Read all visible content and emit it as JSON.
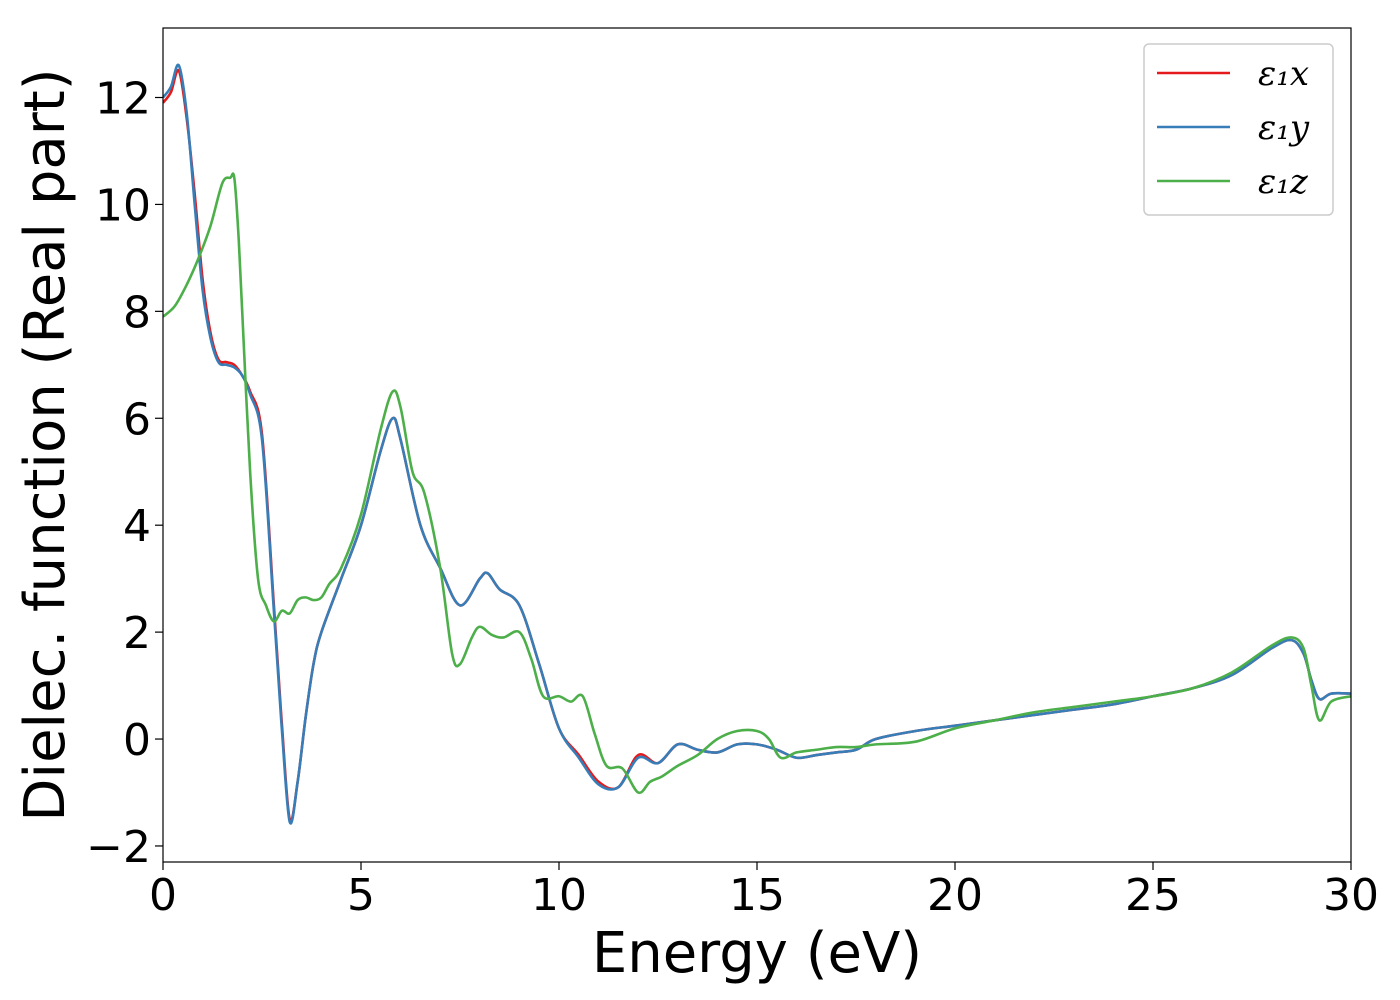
{
  "chart_data": {
    "type": "line",
    "xlabel": "Energy (eV)",
    "ylabel": "Dielec. function (Real part)",
    "xlim": [
      0,
      30
    ],
    "ylim": [
      -2.3,
      13.3
    ],
    "xticks": [
      0,
      5,
      10,
      15,
      20,
      25,
      30
    ],
    "yticks": [
      -2,
      0,
      2,
      4,
      6,
      8,
      10,
      12
    ],
    "xtick_labels": [
      "0",
      "5",
      "10",
      "15",
      "20",
      "25",
      "30"
    ],
    "ytick_labels": [
      "−2",
      "0",
      "2",
      "4",
      "6",
      "8",
      "10",
      "12"
    ],
    "grid": false,
    "legend_position": "top-right",
    "series": [
      {
        "name": "ε₁x",
        "color": "#e41a1c",
        "x": [
          0,
          0.2,
          0.4,
          0.6,
          0.8,
          1.0,
          1.2,
          1.4,
          1.6,
          1.8,
          2.0,
          2.2,
          2.5,
          2.8,
          3.0,
          3.2,
          3.4,
          3.6,
          3.8,
          4.0,
          4.5,
          5.0,
          5.5,
          5.8,
          6.0,
          6.5,
          7.0,
          7.5,
          8.0,
          8.2,
          8.5,
          9.0,
          9.5,
          10.0,
          10.5,
          11.0,
          11.5,
          12.0,
          12.5,
          13.0,
          13.5,
          14.0,
          14.5,
          15.0,
          15.5,
          16.0,
          16.5,
          17.0,
          17.5,
          18.0,
          19.0,
          20.0,
          21.0,
          22.0,
          23.0,
          24.0,
          25.0,
          26.0,
          27.0,
          28.0,
          28.5,
          28.8,
          29.0,
          29.2,
          29.5,
          30.0
        ],
        "values": [
          11.9,
          12.1,
          12.5,
          11.6,
          10.2,
          8.6,
          7.6,
          7.1,
          7.05,
          7.0,
          6.8,
          6.5,
          5.7,
          2.5,
          0.3,
          -1.5,
          -0.8,
          0.4,
          1.4,
          2.0,
          3.0,
          4.0,
          5.4,
          6.0,
          5.6,
          4.0,
          3.2,
          2.5,
          3.0,
          3.1,
          2.8,
          2.5,
          1.4,
          0.2,
          -0.3,
          -0.8,
          -0.9,
          -0.3,
          -0.45,
          -0.1,
          -0.2,
          -0.25,
          -0.1,
          -0.1,
          -0.2,
          -0.35,
          -0.3,
          -0.25,
          -0.2,
          0.0,
          0.15,
          0.25,
          0.35,
          0.45,
          0.55,
          0.65,
          0.8,
          0.95,
          1.2,
          1.7,
          1.85,
          1.6,
          1.1,
          0.75,
          0.85,
          0.85
        ]
      },
      {
        "name": "ε₁y",
        "color": "#377eb8",
        "x": [
          0,
          0.2,
          0.4,
          0.6,
          0.8,
          1.0,
          1.2,
          1.4,
          1.6,
          1.8,
          2.0,
          2.2,
          2.5,
          2.8,
          3.0,
          3.2,
          3.4,
          3.6,
          3.8,
          4.0,
          4.5,
          5.0,
          5.5,
          5.8,
          6.0,
          6.5,
          7.0,
          7.5,
          8.0,
          8.2,
          8.5,
          9.0,
          9.5,
          10.0,
          10.5,
          11.0,
          11.5,
          12.0,
          12.5,
          13.0,
          13.5,
          14.0,
          14.5,
          15.0,
          15.5,
          16.0,
          16.5,
          17.0,
          17.5,
          18.0,
          19.0,
          20.0,
          21.0,
          22.0,
          23.0,
          24.0,
          25.0,
          26.0,
          27.0,
          28.0,
          28.5,
          28.8,
          29.0,
          29.2,
          29.5,
          30.0
        ],
        "values": [
          12.0,
          12.2,
          12.6,
          11.7,
          10.0,
          8.4,
          7.5,
          7.05,
          7.0,
          6.95,
          6.8,
          6.45,
          5.6,
          2.4,
          0.2,
          -1.55,
          -0.8,
          0.4,
          1.4,
          2.0,
          3.0,
          4.0,
          5.4,
          6.0,
          5.6,
          4.0,
          3.2,
          2.5,
          3.0,
          3.1,
          2.8,
          2.5,
          1.4,
          0.2,
          -0.35,
          -0.85,
          -0.9,
          -0.35,
          -0.45,
          -0.1,
          -0.2,
          -0.25,
          -0.1,
          -0.1,
          -0.2,
          -0.35,
          -0.3,
          -0.25,
          -0.2,
          0.0,
          0.15,
          0.25,
          0.35,
          0.45,
          0.55,
          0.65,
          0.8,
          0.95,
          1.2,
          1.7,
          1.85,
          1.6,
          1.1,
          0.75,
          0.85,
          0.85
        ]
      },
      {
        "name": "ε₁z",
        "color": "#4daf4a",
        "x": [
          0,
          0.3,
          0.6,
          0.9,
          1.2,
          1.5,
          1.7,
          1.8,
          1.9,
          2.0,
          2.2,
          2.4,
          2.6,
          2.8,
          3.0,
          3.2,
          3.4,
          3.6,
          3.8,
          4.0,
          4.2,
          4.5,
          5.0,
          5.5,
          5.8,
          6.0,
          6.3,
          6.6,
          7.0,
          7.3,
          7.5,
          7.8,
          8.0,
          8.3,
          8.6,
          9.0,
          9.3,
          9.6,
          10.0,
          10.3,
          10.6,
          10.9,
          11.2,
          11.6,
          12.0,
          12.3,
          12.6,
          13.0,
          13.5,
          14.0,
          14.5,
          15.0,
          15.3,
          15.6,
          16.0,
          16.5,
          17.0,
          17.5,
          18.0,
          19.0,
          20.0,
          21.0,
          22.0,
          23.0,
          24.0,
          25.0,
          26.0,
          27.0,
          28.0,
          28.5,
          28.8,
          29.0,
          29.2,
          29.5,
          30.0
        ],
        "values": [
          7.9,
          8.1,
          8.5,
          9.0,
          9.6,
          10.4,
          10.5,
          10.5,
          9.5,
          8.0,
          5.0,
          3.0,
          2.5,
          2.2,
          2.4,
          2.35,
          2.6,
          2.65,
          2.6,
          2.65,
          2.9,
          3.2,
          4.2,
          5.8,
          6.5,
          6.2,
          5.0,
          4.6,
          3.2,
          1.6,
          1.4,
          1.9,
          2.1,
          1.95,
          1.9,
          2.0,
          1.5,
          0.8,
          0.8,
          0.7,
          0.8,
          0.1,
          -0.5,
          -0.55,
          -1.0,
          -0.8,
          -0.7,
          -0.5,
          -0.3,
          0.0,
          0.15,
          0.15,
          0.0,
          -0.35,
          -0.25,
          -0.2,
          -0.15,
          -0.15,
          -0.1,
          -0.05,
          0.2,
          0.35,
          0.5,
          0.6,
          0.7,
          0.8,
          0.95,
          1.25,
          1.75,
          1.9,
          1.7,
          1.0,
          0.35,
          0.7,
          0.8
        ]
      }
    ]
  }
}
